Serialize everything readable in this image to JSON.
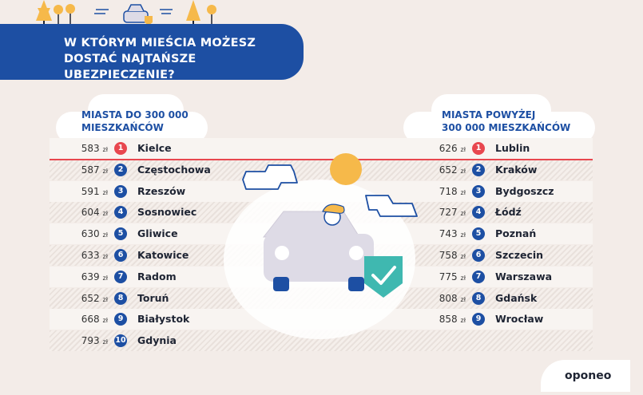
{
  "header": {
    "title_line1": "W KTÓRYM MIEŚCIA MOŻESZ",
    "title_line2": "DOSTAĆ NAJTAŃSZE UBEZPIECZENIE?"
  },
  "left_column": {
    "heading_line1": "MIASTA DO 300 000",
    "heading_line2": "MIESZKAŃCÓW",
    "rows": [
      {
        "price": "583",
        "rank": "1",
        "city": "Kielce"
      },
      {
        "price": "587",
        "rank": "2",
        "city": "Częstochowa"
      },
      {
        "price": "591",
        "rank": "3",
        "city": "Rzeszów"
      },
      {
        "price": "604",
        "rank": "4",
        "city": "Sosnowiec"
      },
      {
        "price": "630",
        "rank": "5",
        "city": "Gliwice"
      },
      {
        "price": "633",
        "rank": "6",
        "city": "Katowice"
      },
      {
        "price": "639",
        "rank": "7",
        "city": "Radom"
      },
      {
        "price": "652",
        "rank": "8",
        "city": "Toruń"
      },
      {
        "price": "668",
        "rank": "9",
        "city": "Białystok"
      },
      {
        "price": "793",
        "rank": "10",
        "city": "Gdynia"
      }
    ]
  },
  "right_column": {
    "heading_line1": "MIASTA POWYŻEJ",
    "heading_line2": "300 000 MIESZKAŃCÓW",
    "rows": [
      {
        "price": "626",
        "rank": "1",
        "city": "Lublin"
      },
      {
        "price": "652",
        "rank": "2",
        "city": "Kraków"
      },
      {
        "price": "718",
        "rank": "3",
        "city": "Bydgoszcz"
      },
      {
        "price": "727",
        "rank": "4",
        "city": "Łódź"
      },
      {
        "price": "743",
        "rank": "5",
        "city": "Poznań"
      },
      {
        "price": "758",
        "rank": "6",
        "city": "Szczecin"
      },
      {
        "price": "775",
        "rank": "7",
        "city": "Warszawa"
      },
      {
        "price": "808",
        "rank": "8",
        "city": "Gdańsk"
      },
      {
        "price": "858",
        "rank": "9",
        "city": "Wrocław"
      }
    ]
  },
  "currency": "zł",
  "brand": "oponeo",
  "colors": {
    "primary_blue": "#1d4fa3",
    "accent_red": "#e8474f",
    "teal": "#3fb8b0",
    "sun_orange": "#f6b94a",
    "background": "#f3ece8"
  },
  "icons": [
    "tree-icon",
    "car-icon",
    "shield-check-icon",
    "sun-icon",
    "cloud-icon",
    "driver-icon"
  ]
}
